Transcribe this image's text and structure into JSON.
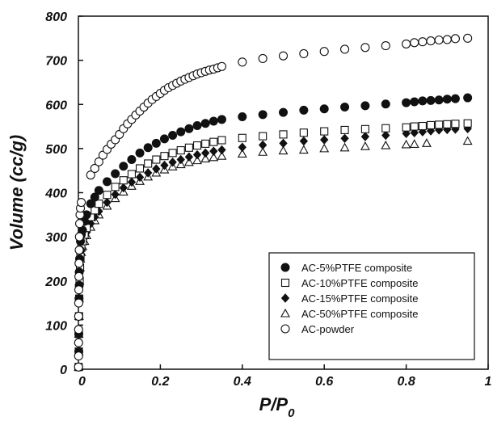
{
  "chart_data": {
    "type": "scatter",
    "xlabel": "P/P",
    "xlabel_sub": "0",
    "ylabel": "Volume (cc/g)",
    "xlim": [
      0,
      1
    ],
    "ylim": [
      0,
      800
    ],
    "xticks": [
      "0",
      "0.2",
      "0.4",
      "0.6",
      "0.8",
      "1"
    ],
    "yticks": [
      "0",
      "100",
      "200",
      "300",
      "400",
      "500",
      "600",
      "700",
      "800"
    ],
    "grid": false,
    "legend_position": "bottom-right",
    "series": [
      {
        "name": "AC-5%PTFE composite",
        "marker": "circle-filled",
        "points": [
          [
            0.0005,
            5
          ],
          [
            0.001,
            40
          ],
          [
            0.001,
            80
          ],
          [
            0.001,
            120
          ],
          [
            0.0015,
            160
          ],
          [
            0.002,
            190
          ],
          [
            0.002,
            220
          ],
          [
            0.003,
            250
          ],
          [
            0.004,
            270
          ],
          [
            0.005,
            290
          ],
          [
            0.007,
            305
          ],
          [
            0.01,
            315
          ],
          [
            0.015,
            335
          ],
          [
            0.02,
            350
          ],
          [
            0.03,
            375
          ],
          [
            0.04,
            390
          ],
          [
            0.05,
            405
          ],
          [
            0.07,
            425
          ],
          [
            0.09,
            443
          ],
          [
            0.11,
            460
          ],
          [
            0.13,
            475
          ],
          [
            0.15,
            490
          ],
          [
            0.17,
            502
          ],
          [
            0.19,
            512
          ],
          [
            0.21,
            522
          ],
          [
            0.23,
            530
          ],
          [
            0.25,
            538
          ],
          [
            0.27,
            545
          ],
          [
            0.29,
            552
          ],
          [
            0.31,
            557
          ],
          [
            0.33,
            562
          ],
          [
            0.35,
            566
          ],
          [
            0.4,
            572
          ],
          [
            0.45,
            577
          ],
          [
            0.5,
            582
          ],
          [
            0.55,
            587
          ],
          [
            0.6,
            590
          ],
          [
            0.65,
            594
          ],
          [
            0.7,
            597
          ],
          [
            0.75,
            601
          ],
          [
            0.8,
            604
          ],
          [
            0.82,
            606
          ],
          [
            0.84,
            608
          ],
          [
            0.86,
            609
          ],
          [
            0.88,
            610
          ],
          [
            0.9,
            612
          ],
          [
            0.92,
            613
          ],
          [
            0.95,
            615
          ]
        ]
      },
      {
        "name": "AC-10%PTFE composite",
        "marker": "square-open",
        "points": [
          [
            0.0005,
            5
          ],
          [
            0.001,
            40
          ],
          [
            0.001,
            80
          ],
          [
            0.0015,
            120
          ],
          [
            0.002,
            160
          ],
          [
            0.003,
            200
          ],
          [
            0.004,
            230
          ],
          [
            0.005,
            255
          ],
          [
            0.007,
            275
          ],
          [
            0.01,
            290
          ],
          [
            0.015,
            305
          ],
          [
            0.02,
            320
          ],
          [
            0.03,
            345
          ],
          [
            0.04,
            360
          ],
          [
            0.05,
            375
          ],
          [
            0.07,
            395
          ],
          [
            0.09,
            413
          ],
          [
            0.11,
            428
          ],
          [
            0.13,
            442
          ],
          [
            0.15,
            455
          ],
          [
            0.17,
            466
          ],
          [
            0.19,
            475
          ],
          [
            0.21,
            483
          ],
          [
            0.23,
            490
          ],
          [
            0.25,
            496
          ],
          [
            0.27,
            502
          ],
          [
            0.29,
            507
          ],
          [
            0.31,
            511
          ],
          [
            0.33,
            515
          ],
          [
            0.35,
            519
          ],
          [
            0.4,
            524
          ],
          [
            0.45,
            528
          ],
          [
            0.5,
            532
          ],
          [
            0.55,
            536
          ],
          [
            0.6,
            539
          ],
          [
            0.65,
            542
          ],
          [
            0.7,
            544
          ],
          [
            0.75,
            546
          ],
          [
            0.8,
            548
          ],
          [
            0.82,
            550
          ],
          [
            0.84,
            551
          ],
          [
            0.86,
            553
          ],
          [
            0.88,
            554
          ],
          [
            0.9,
            555
          ],
          [
            0.92,
            556
          ],
          [
            0.95,
            557
          ]
        ]
      },
      {
        "name": "AC-15%PTFE composite",
        "marker": "diamond-filled",
        "points": [
          [
            0.0005,
            5
          ],
          [
            0.001,
            40
          ],
          [
            0.001,
            80
          ],
          [
            0.0015,
            120
          ],
          [
            0.002,
            160
          ],
          [
            0.003,
            200
          ],
          [
            0.004,
            230
          ],
          [
            0.005,
            255
          ],
          [
            0.007,
            270
          ],
          [
            0.01,
            285
          ],
          [
            0.015,
            298
          ],
          [
            0.02,
            310
          ],
          [
            0.03,
            330
          ],
          [
            0.04,
            345
          ],
          [
            0.05,
            358
          ],
          [
            0.07,
            378
          ],
          [
            0.09,
            396
          ],
          [
            0.11,
            411
          ],
          [
            0.13,
            424
          ],
          [
            0.15,
            435
          ],
          [
            0.17,
            445
          ],
          [
            0.19,
            454
          ],
          [
            0.21,
            462
          ],
          [
            0.23,
            469
          ],
          [
            0.25,
            475
          ],
          [
            0.27,
            481
          ],
          [
            0.29,
            486
          ],
          [
            0.31,
            490
          ],
          [
            0.33,
            494
          ],
          [
            0.35,
            497
          ],
          [
            0.4,
            503
          ],
          [
            0.45,
            508
          ],
          [
            0.5,
            512
          ],
          [
            0.55,
            517
          ],
          [
            0.6,
            520
          ],
          [
            0.65,
            523
          ],
          [
            0.7,
            527
          ],
          [
            0.75,
            530
          ],
          [
            0.8,
            534
          ],
          [
            0.82,
            536
          ],
          [
            0.84,
            538
          ],
          [
            0.86,
            540
          ],
          [
            0.88,
            542
          ],
          [
            0.9,
            543
          ],
          [
            0.92,
            544
          ],
          [
            0.95,
            545
          ]
        ]
      },
      {
        "name": "AC-50%PTFE composite",
        "marker": "triangle-open",
        "points": [
          [
            0.0005,
            5
          ],
          [
            0.001,
            40
          ],
          [
            0.001,
            80
          ],
          [
            0.0015,
            120
          ],
          [
            0.002,
            160
          ],
          [
            0.003,
            200
          ],
          [
            0.004,
            230
          ],
          [
            0.005,
            250
          ],
          [
            0.007,
            265
          ],
          [
            0.01,
            278
          ],
          [
            0.015,
            290
          ],
          [
            0.02,
            303
          ],
          [
            0.03,
            322
          ],
          [
            0.04,
            337
          ],
          [
            0.05,
            350
          ],
          [
            0.07,
            370
          ],
          [
            0.09,
            387
          ],
          [
            0.11,
            402
          ],
          [
            0.13,
            415
          ],
          [
            0.15,
            426
          ],
          [
            0.17,
            436
          ],
          [
            0.19,
            445
          ],
          [
            0.21,
            452
          ],
          [
            0.23,
            459
          ],
          [
            0.25,
            464
          ],
          [
            0.27,
            469
          ],
          [
            0.29,
            473
          ],
          [
            0.31,
            477
          ],
          [
            0.33,
            480
          ],
          [
            0.35,
            483
          ],
          [
            0.4,
            488
          ],
          [
            0.45,
            492
          ],
          [
            0.5,
            495
          ],
          [
            0.55,
            497
          ],
          [
            0.6,
            500
          ],
          [
            0.65,
            502
          ],
          [
            0.7,
            505
          ],
          [
            0.75,
            507
          ],
          [
            0.8,
            509
          ],
          [
            0.82,
            510
          ],
          [
            0.85,
            512
          ],
          [
            0.95,
            517
          ]
        ]
      },
      {
        "name": "AC-powder",
        "marker": "circle-open",
        "points": [
          [
            0.0003,
            5
          ],
          [
            0.0005,
            30
          ],
          [
            0.0005,
            60
          ],
          [
            0.0005,
            90
          ],
          [
            0.0007,
            120
          ],
          [
            0.0008,
            150
          ],
          [
            0.001,
            180
          ],
          [
            0.0012,
            210
          ],
          [
            0.0015,
            240
          ],
          [
            0.002,
            270
          ],
          [
            0.0025,
            300
          ],
          [
            0.003,
            330
          ],
          [
            0.004,
            350
          ],
          [
            0.005,
            365
          ],
          [
            0.007,
            378
          ],
          [
            0.03,
            440
          ],
          [
            0.04,
            455
          ],
          [
            0.05,
            470
          ],
          [
            0.06,
            485
          ],
          [
            0.07,
            498
          ],
          [
            0.08,
            510
          ],
          [
            0.09,
            520
          ],
          [
            0.1,
            532
          ],
          [
            0.11,
            545
          ],
          [
            0.12,
            556
          ],
          [
            0.13,
            566
          ],
          [
            0.14,
            576
          ],
          [
            0.15,
            585
          ],
          [
            0.16,
            594
          ],
          [
            0.17,
            603
          ],
          [
            0.18,
            611
          ],
          [
            0.19,
            618
          ],
          [
            0.2,
            625
          ],
          [
            0.21,
            632
          ],
          [
            0.22,
            638
          ],
          [
            0.23,
            643
          ],
          [
            0.24,
            648
          ],
          [
            0.25,
            653
          ],
          [
            0.26,
            657
          ],
          [
            0.27,
            661
          ],
          [
            0.28,
            665
          ],
          [
            0.29,
            669
          ],
          [
            0.3,
            672
          ],
          [
            0.31,
            675
          ],
          [
            0.32,
            678
          ],
          [
            0.33,
            680
          ],
          [
            0.34,
            683
          ],
          [
            0.35,
            686
          ],
          [
            0.4,
            696
          ],
          [
            0.45,
            704
          ],
          [
            0.5,
            710
          ],
          [
            0.55,
            715
          ],
          [
            0.6,
            720
          ],
          [
            0.65,
            725
          ],
          [
            0.7,
            729
          ],
          [
            0.75,
            733
          ],
          [
            0.8,
            737
          ],
          [
            0.82,
            740
          ],
          [
            0.84,
            742
          ],
          [
            0.86,
            744
          ],
          [
            0.88,
            746
          ],
          [
            0.9,
            747
          ],
          [
            0.92,
            749
          ],
          [
            0.95,
            750
          ]
        ]
      }
    ]
  }
}
